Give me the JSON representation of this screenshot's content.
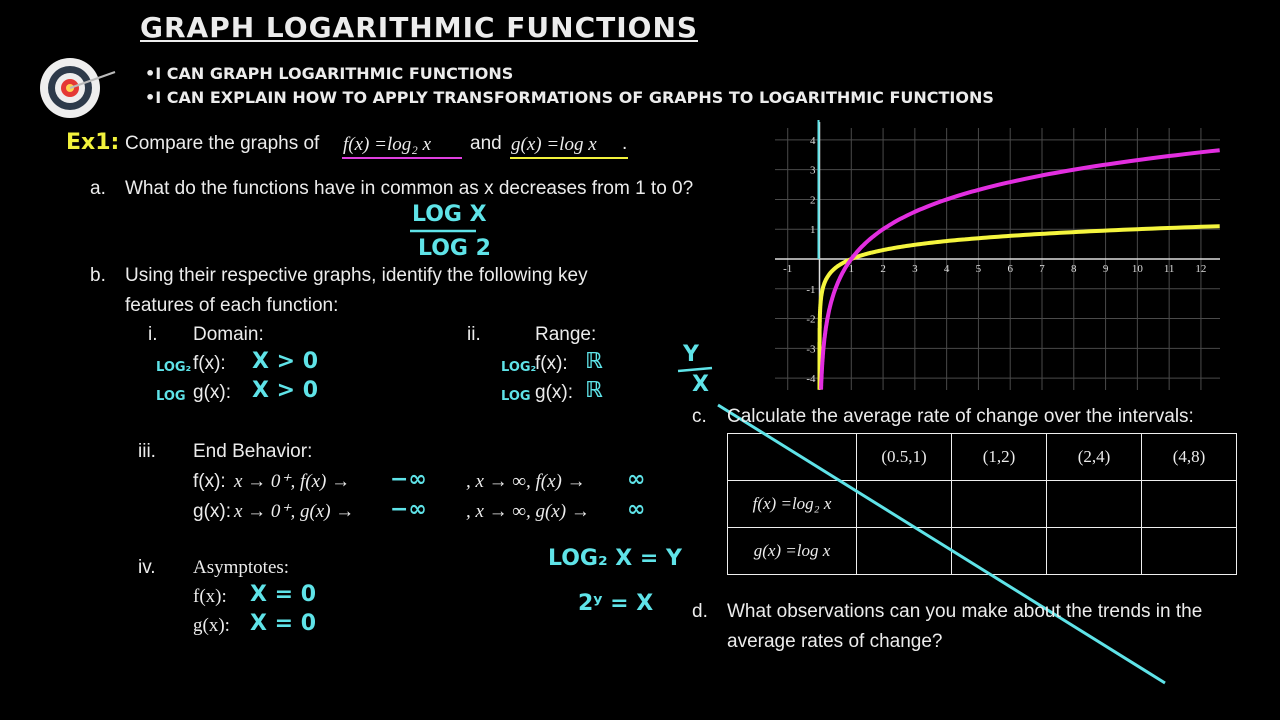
{
  "header": {
    "title": "Graph Logarithmic Functions",
    "objectives": [
      "•I can graph logarithmic functions",
      "•I can explain how to apply transformations of graphs to logarithmic functions"
    ]
  },
  "example": {
    "label": "Ex1:",
    "text": "Compare the graphs of",
    "f": "f(x) =log₂ x",
    "and": "and",
    "g": "g(x) =log x",
    "end": "."
  },
  "a": {
    "marker": "a.",
    "question": "What do the functions have in common as x decreases from 1 to 0?",
    "notes": [
      "LOG X",
      "LOG 2"
    ]
  },
  "b": {
    "marker": "b.",
    "question": "Using their respective graphs, identify the following key features of each function:",
    "domain": {
      "marker": "i.",
      "label": "Domain:",
      "rows": [
        {
          "tag": "LOG₂",
          "fn": "f(x):",
          "answer": "X > 0"
        },
        {
          "tag": "LOG",
          "fn": "g(x):",
          "answer": "X > 0"
        }
      ]
    },
    "range": {
      "marker": "ii.",
      "label": "Range:",
      "rows": [
        {
          "tag": "LOG₂",
          "fn": "f(x):",
          "answer": "ℝ"
        },
        {
          "tag": "LOG",
          "fn": "g(x):",
          "answer": "ℝ"
        }
      ]
    },
    "end": {
      "marker": "iii.",
      "label": "End Behavior:",
      "rows": [
        {
          "fn": "f(x):",
          "left": "x → 0⁺, f(x) →",
          "left_answer": "−∞",
          "right": ", x → ∞, f(x) →",
          "right_answer": "∞"
        },
        {
          "fn": "g(x):",
          "left": "x → 0⁺, g(x) →",
          "left_answer": "−∞",
          "right": ", x → ∞, g(x) →",
          "right_answer": "∞"
        }
      ]
    },
    "asymptotes": {
      "marker": "iv.",
      "label": "Asymptotes:",
      "rows": [
        {
          "fn": "f(x):",
          "answer": "X = 0"
        },
        {
          "fn": "g(x):",
          "answer": "X = 0"
        }
      ]
    }
  },
  "side_notes": [
    "Y",
    "X",
    "LOG₂ X = Y",
    "2ʸ = X"
  ],
  "c": {
    "marker": "c.",
    "question": "Calculate the average rate of change over the intervals:",
    "table": {
      "columns": [
        "(0.5,1)",
        "(1,2)",
        "(2,4)",
        "(4,8)"
      ],
      "rows": [
        "f(x) =log₂ x",
        "g(x) =log x"
      ]
    }
  },
  "d": {
    "marker": "d.",
    "question": "What observations can you make about the trends in the average rates of change?"
  },
  "graph": {
    "xlim": [
      -1.4,
      12.6
    ],
    "ylim": [
      -4.4,
      4.4
    ],
    "xticks": [
      -1,
      1,
      2,
      3,
      4,
      5,
      6,
      7,
      8,
      9,
      10,
      11,
      12
    ],
    "yticks": [
      -4,
      -3,
      -2,
      -1,
      1,
      2,
      3,
      4
    ],
    "grid": true,
    "series": [
      {
        "color": "#e22ee0"
      },
      {
        "color": "#f5f53e"
      }
    ]
  }
}
